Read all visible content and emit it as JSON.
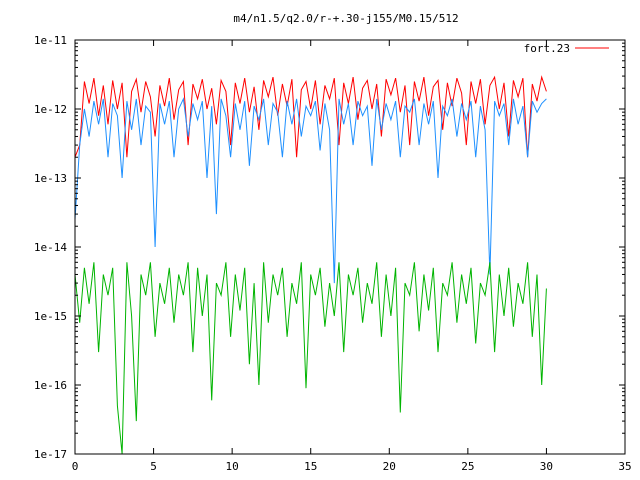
{
  "chart_data": {
    "type": "line",
    "title": "m4/n1.5/q2.0/r-+.30-j155/M0.15/512",
    "xlabel": "",
    "ylabel": "",
    "xlim": [
      0,
      35
    ],
    "ylim": [
      1e-17,
      1e-11
    ],
    "y_scale": "log",
    "grid": false,
    "legend_position": "top-right",
    "x_ticks": [
      0,
      5,
      10,
      15,
      20,
      25,
      30,
      35
    ],
    "x_tick_labels": [
      "0",
      "5",
      "10",
      "15",
      "20",
      "25",
      "30",
      "35"
    ],
    "y_ticks": [
      1e-17,
      1e-16,
      1e-15,
      1e-14,
      1e-13,
      1e-12,
      1e-11
    ],
    "y_tick_labels": [
      "1e-17",
      "1e-16",
      "1e-15",
      "1e-14",
      "1e-13",
      "1e-12",
      "1e-11"
    ],
    "series": [
      {
        "name": "fort.23",
        "color": "#ff0000",
        "x": [
          0,
          0.3,
          0.6,
          0.9,
          1.2,
          1.5,
          1.8,
          2.1,
          2.4,
          2.7,
          3,
          3.3,
          3.6,
          3.9,
          4.2,
          4.5,
          4.8,
          5.1,
          5.4,
          5.7,
          6,
          6.3,
          6.6,
          6.9,
          7.2,
          7.5,
          7.8,
          8.1,
          8.4,
          8.7,
          9,
          9.3,
          9.6,
          9.9,
          10.2,
          10.5,
          10.8,
          11.1,
          11.4,
          11.7,
          12,
          12.3,
          12.6,
          12.9,
          13.2,
          13.5,
          13.8,
          14.1,
          14.4,
          14.7,
          15,
          15.3,
          15.6,
          15.9,
          16.2,
          16.5,
          16.8,
          17.1,
          17.4,
          17.7,
          18,
          18.3,
          18.6,
          18.9,
          19.2,
          19.5,
          19.8,
          20.1,
          20.4,
          20.7,
          21,
          21.3,
          21.6,
          21.9,
          22.2,
          22.5,
          22.8,
          23.1,
          23.4,
          23.7,
          24,
          24.3,
          24.6,
          24.9,
          25.2,
          25.5,
          25.8,
          26.1,
          26.4,
          26.7,
          27,
          27.3,
          27.6,
          27.9,
          28.2,
          28.5,
          28.8,
          29.1,
          29.4,
          29.7,
          30
        ],
        "y": [
          2e-13,
          3e-13,
          2.5e-12,
          1.2e-12,
          2.8e-12,
          8e-13,
          2.2e-12,
          6e-13,
          2.6e-12,
          1e-12,
          2.4e-12,
          2e-13,
          1.8e-12,
          2.7e-12,
          9e-13,
          2.5e-12,
          1.5e-12,
          4e-13,
          2.2e-12,
          1.1e-12,
          2.8e-12,
          7e-13,
          1.9e-12,
          2.5e-12,
          3e-13,
          2.3e-12,
          1.4e-12,
          2.7e-12,
          1e-12,
          2e-12,
          6e-13,
          2.6e-12,
          1.8e-12,
          3e-13,
          2.4e-12,
          1.2e-12,
          2.8e-12,
          9e-13,
          2.1e-12,
          5e-13,
          2.6e-12,
          1.5e-12,
          2.9e-12,
          8e-13,
          2.3e-12,
          1.1e-12,
          2.7e-12,
          2e-13,
          1.9e-12,
          2.5e-12,
          1e-12,
          2.6e-12,
          6e-13,
          2.2e-12,
          1.4e-12,
          2.8e-12,
          3e-13,
          2.4e-12,
          1.2e-12,
          2.9e-12,
          7e-13,
          2e-12,
          2.6e-12,
          1e-12,
          2.3e-12,
          4e-13,
          2.7e-12,
          1.6e-12,
          2.8e-12,
          9e-13,
          2.2e-12,
          3e-13,
          2.5e-12,
          1.3e-12,
          2.9e-12,
          8e-13,
          2.1e-12,
          2.6e-12,
          5e-13,
          2.4e-12,
          1.1e-12,
          2.8e-12,
          1.7e-12,
          3e-13,
          2.5e-12,
          1.2e-12,
          2.7e-12,
          6e-13,
          2.2e-12,
          2.9e-12,
          1e-12,
          2.4e-12,
          4e-13,
          2.6e-12,
          1.5e-12,
          2.8e-12,
          2e-13,
          2.3e-12,
          1.3e-12,
          2.9e-12,
          1.8e-12
        ]
      },
      {
        "color": "#1e90ff",
        "x": [
          0,
          0.3,
          0.6,
          0.9,
          1.2,
          1.5,
          1.8,
          2.1,
          2.4,
          2.7,
          3,
          3.3,
          3.6,
          3.9,
          4.2,
          4.5,
          4.8,
          5.1,
          5.4,
          5.7,
          6,
          6.3,
          6.6,
          6.9,
          7.2,
          7.5,
          7.8,
          8.1,
          8.4,
          8.7,
          9,
          9.3,
          9.6,
          9.9,
          10.2,
          10.5,
          10.8,
          11.1,
          11.4,
          11.7,
          12,
          12.3,
          12.6,
          12.9,
          13.2,
          13.5,
          13.8,
          14.1,
          14.4,
          14.7,
          15,
          15.3,
          15.6,
          15.9,
          16.2,
          16.5,
          16.8,
          17.1,
          17.4,
          17.7,
          18,
          18.3,
          18.6,
          18.9,
          19.2,
          19.5,
          19.8,
          20.1,
          20.4,
          20.7,
          21,
          21.3,
          21.6,
          21.9,
          22.2,
          22.5,
          22.8,
          23.1,
          23.4,
          23.7,
          24,
          24.3,
          24.6,
          24.9,
          25.2,
          25.5,
          25.8,
          26.1,
          26.4,
          26.7,
          27,
          27.3,
          27.6,
          27.9,
          28.2,
          28.5,
          28.8,
          29.1,
          29.4,
          29.7,
          30
        ],
        "y": [
          2.5e-14,
          3e-13,
          1e-12,
          4e-13,
          1.3e-12,
          6e-13,
          1.4e-12,
          2e-13,
          1.2e-12,
          8e-13,
          1e-13,
          1.3e-12,
          5e-13,
          1.4e-12,
          3e-13,
          1.1e-12,
          9e-13,
          1e-14,
          1.2e-12,
          6e-13,
          1.3e-12,
          2e-13,
          1e-12,
          1.4e-12,
          4e-13,
          1.2e-12,
          7e-13,
          1.3e-12,
          1e-13,
          1.1e-12,
          3e-14,
          1.4e-12,
          8e-13,
          2e-13,
          1.2e-12,
          5e-13,
          1.3e-12,
          1.5e-13,
          1.1e-12,
          7e-13,
          1.4e-12,
          3e-13,
          1.2e-12,
          9e-13,
          2e-13,
          1.3e-12,
          6e-13,
          1.4e-12,
          4e-13,
          1.1e-12,
          8e-13,
          1.3e-12,
          2.5e-13,
          1.2e-12,
          5e-13,
          3e-15,
          1.4e-12,
          6e-13,
          1.2e-12,
          3e-13,
          1.3e-12,
          8e-13,
          1.1e-12,
          1.5e-13,
          1.4e-12,
          5e-13,
          1.2e-12,
          7e-13,
          1.3e-12,
          2e-13,
          1.1e-12,
          9e-13,
          1.4e-12,
          3e-13,
          1.2e-12,
          6e-13,
          1.3e-12,
          1e-13,
          1.1e-12,
          8e-13,
          1.4e-12,
          4e-13,
          1.2e-12,
          7e-13,
          1.3e-12,
          2e-13,
          1.1e-12,
          5e-13,
          4e-15,
          1.3e-12,
          8e-13,
          1.2e-12,
          3e-13,
          1.4e-12,
          6e-13,
          1.1e-12,
          2e-13,
          1.3e-12,
          9e-13,
          1.2e-12,
          1.4e-12
        ]
      },
      {
        "color": "#00b400",
        "x": [
          0,
          0.3,
          0.6,
          0.9,
          1.2,
          1.5,
          1.8,
          2.1,
          2.4,
          2.7,
          3,
          3.3,
          3.6,
          3.9,
          4.2,
          4.5,
          4.8,
          5.1,
          5.4,
          5.7,
          6,
          6.3,
          6.6,
          6.9,
          7.2,
          7.5,
          7.8,
          8.1,
          8.4,
          8.7,
          9,
          9.3,
          9.6,
          9.9,
          10.2,
          10.5,
          10.8,
          11.1,
          11.4,
          11.7,
          12,
          12.3,
          12.6,
          12.9,
          13.2,
          13.5,
          13.8,
          14.1,
          14.4,
          14.7,
          15,
          15.3,
          15.6,
          15.9,
          16.2,
          16.5,
          16.8,
          17.1,
          17.4,
          17.7,
          18,
          18.3,
          18.6,
          18.9,
          19.2,
          19.5,
          19.8,
          20.1,
          20.4,
          20.7,
          21,
          21.3,
          21.6,
          21.9,
          22.2,
          22.5,
          22.8,
          23.1,
          23.4,
          23.7,
          24,
          24.3,
          24.6,
          24.9,
          25.2,
          25.5,
          25.8,
          26.1,
          26.4,
          26.7,
          27,
          27.3,
          27.6,
          27.9,
          28.2,
          28.5,
          28.8,
          29.1,
          29.4,
          29.7,
          30
        ],
        "y": [
          4e-15,
          8e-16,
          5e-15,
          1.5e-15,
          6e-15,
          3e-16,
          4e-15,
          2e-15,
          5e-15,
          5e-17,
          1e-17,
          6e-15,
          1e-15,
          3e-17,
          4e-15,
          2e-15,
          6e-15,
          5e-16,
          3e-15,
          1.5e-15,
          5e-15,
          8e-16,
          4e-15,
          2e-15,
          6e-15,
          3e-16,
          5e-15,
          1e-15,
          4e-15,
          6e-17,
          3e-15,
          2e-15,
          6e-15,
          5e-16,
          4e-15,
          1.2e-15,
          5e-15,
          2e-16,
          3e-15,
          1e-16,
          6e-15,
          8e-16,
          4e-15,
          2e-15,
          5e-15,
          5e-16,
          3e-15,
          1.5e-15,
          6e-15,
          9e-17,
          4e-15,
          2e-15,
          5e-15,
          7e-16,
          3e-15,
          1e-15,
          6e-15,
          3e-16,
          4e-15,
          2e-15,
          5e-15,
          8e-16,
          3e-15,
          1.5e-15,
          6e-15,
          5e-16,
          4e-15,
          1e-15,
          5e-15,
          4e-17,
          3e-15,
          2e-15,
          6e-15,
          6e-16,
          4e-15,
          1.2e-15,
          5e-15,
          3e-16,
          3e-15,
          2e-15,
          6e-15,
          8e-16,
          4e-15,
          1.5e-15,
          5e-15,
          4e-16,
          3e-15,
          2e-15,
          6e-15,
          3e-16,
          4e-15,
          1e-15,
          5e-15,
          7e-16,
          3e-15,
          1.5e-15,
          6e-15,
          5e-16,
          4e-15,
          1e-16,
          2.5e-15
        ]
      }
    ]
  }
}
